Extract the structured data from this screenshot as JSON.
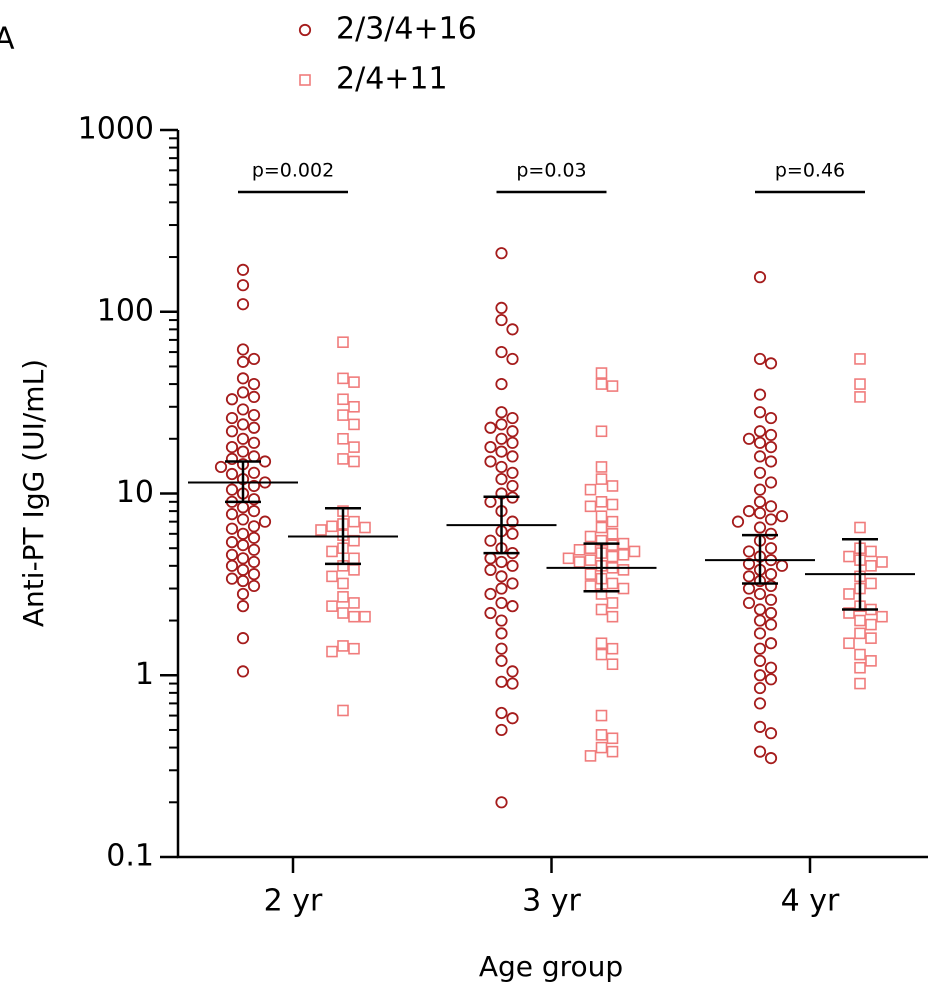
{
  "panel_label": "A",
  "chart_data": {
    "type": "dotplot",
    "x_label": "Age group",
    "y_label": "Anti-PT IgG (UI/mL)",
    "categories": [
      "2 yr",
      "3 yr",
      "4 yr"
    ],
    "log_y": true,
    "ylim": [
      0.1,
      1000
    ],
    "yticks": [
      0.1,
      1,
      10,
      100,
      1000
    ],
    "yminor_ticks": [
      0.2,
      0.3,
      0.4,
      0.5,
      0.6,
      0.7,
      0.8,
      0.9,
      2,
      3,
      4,
      5,
      6,
      7,
      8,
      9,
      20,
      30,
      40,
      50,
      60,
      70,
      80,
      90,
      200,
      300,
      400,
      500,
      600,
      700,
      800,
      900
    ],
    "series": [
      {
        "name": "2/3/4+16",
        "color": "#a51c1c",
        "marker": "circle",
        "values": [
          [
            170,
            140,
            110,
            62,
            55,
            53,
            43,
            40,
            36,
            34,
            33,
            29,
            27,
            26,
            24,
            23,
            22,
            20,
            19,
            18,
            17,
            16,
            15.5,
            15,
            14.5,
            14,
            13,
            12.8,
            12,
            11.5,
            11,
            10.5,
            10,
            9.3,
            9,
            8.4,
            8,
            7.7,
            7.2,
            7,
            6.6,
            6.4,
            6,
            5.7,
            5.4,
            5.2,
            4.9,
            4.6,
            4.4,
            4.2,
            4,
            3.8,
            3.6,
            3.4,
            3.3,
            3.1,
            2.8,
            2.4,
            1.6,
            1.05
          ],
          [
            210,
            105,
            90,
            80,
            60,
            55,
            40,
            28,
            26,
            24,
            23,
            22,
            20,
            19,
            18,
            17,
            16,
            15,
            14,
            13,
            12,
            11,
            10,
            9.5,
            9,
            8,
            7,
            6.2,
            6,
            5.5,
            5,
            4.7,
            4.4,
            4.2,
            4,
            3.8,
            3.5,
            3.2,
            3,
            2.8,
            2.5,
            2.4,
            2.2,
            2,
            1.7,
            1.4,
            1.2,
            1.05,
            0.92,
            0.9,
            0.62,
            0.58,
            0.5,
            0.2
          ],
          [
            155,
            55,
            52,
            35,
            28,
            26,
            22,
            21,
            20,
            19,
            18,
            16,
            15,
            13,
            11.5,
            10.5,
            9,
            8.5,
            8,
            7.8,
            7.5,
            7.2,
            7,
            6.5,
            6,
            5.5,
            5,
            4.8,
            4.5,
            4.3,
            4.1,
            4,
            3.8,
            3.6,
            3.5,
            3.3,
            3.1,
            3,
            2.8,
            2.6,
            2.5,
            2.3,
            2.2,
            2,
            1.9,
            1.7,
            1.5,
            1.4,
            1.2,
            1.1,
            1,
            0.95,
            0.85,
            0.7,
            0.52,
            0.48,
            0.38,
            0.35
          ]
        ],
        "mean": [
          11.5,
          6.7,
          4.3
        ],
        "ci_low": [
          9,
          4.7,
          3.2
        ],
        "ci_high": [
          15,
          9.6,
          5.9
        ]
      },
      {
        "name": "2/4+11",
        "color": "#f07c7c",
        "marker": "square",
        "values": [
          [
            68,
            43,
            41,
            33,
            30,
            27,
            24,
            20,
            18,
            15.5,
            15,
            8,
            7,
            6.8,
            6.6,
            6.5,
            6.3,
            5.9,
            5.5,
            5,
            4.8,
            4.4,
            4,
            3.8,
            3.5,
            3.2,
            2.7,
            2.5,
            2.4,
            2.2,
            2.1,
            2.1,
            1.45,
            1.4,
            1.35,
            0.64
          ],
          [
            46,
            40,
            39,
            22,
            14,
            12,
            11,
            10.5,
            9,
            8.7,
            8.5,
            7.5,
            7,
            6.5,
            6,
            5.8,
            5.5,
            5.3,
            5.2,
            5,
            4.9,
            4.8,
            4.7,
            4.6,
            4.5,
            4.4,
            4.3,
            4.2,
            4,
            3.9,
            3.8,
            3.6,
            3.4,
            3.2,
            3.1,
            3,
            2.8,
            2.5,
            2.3,
            2.1,
            1.5,
            1.4,
            1.3,
            1.15,
            0.6,
            0.47,
            0.45,
            0.4,
            0.38,
            0.36
          ],
          [
            55,
            40,
            34,
            6.5,
            5,
            4.8,
            4.5,
            4.3,
            4.2,
            4,
            3.5,
            3.2,
            3,
            2.8,
            2.4,
            2.3,
            2.2,
            2.1,
            2,
            1.9,
            1.7,
            1.6,
            1.5,
            1.3,
            1.2,
            1.1,
            0.9
          ]
        ],
        "mean": [
          5.8,
          3.9,
          3.6
        ],
        "ci_low": [
          4.1,
          2.9,
          2.3
        ],
        "ci_high": [
          8.3,
          5.3,
          5.6
        ]
      }
    ],
    "annotations": [
      {
        "text": "p=0.002",
        "category": 0
      },
      {
        "text": "p=0.03",
        "category": 1
      },
      {
        "text": "p=0.46",
        "category": 2
      }
    ]
  }
}
